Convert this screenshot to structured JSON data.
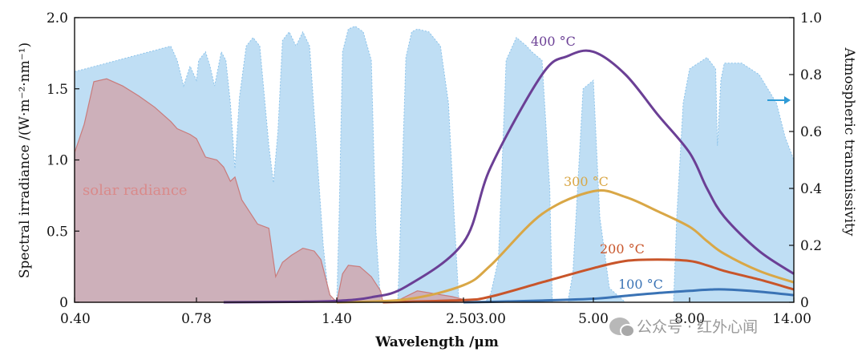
{
  "chart_data": {
    "type": "line",
    "x_axis": {
      "label": "Wavelength /μm",
      "ticks": [
        "0.40",
        "0.78",
        "1.40",
        "2.50",
        "3.00",
        "5.00",
        "8.00",
        "14.00"
      ],
      "tick_values": [
        0.4,
        0.78,
        1.4,
        2.5,
        3.0,
        5.0,
        8.0,
        14.0
      ],
      "scale": "piecewise",
      "range": [
        0.4,
        14.0
      ]
    },
    "y_axis_left": {
      "label": "Spectral irradiance /(W·m⁻²·nm⁻¹)",
      "ticks": [
        "0",
        "0.5",
        "1.0",
        "1.5",
        "2.0"
      ],
      "range": [
        0,
        2.0
      ]
    },
    "y_axis_right": {
      "label": "Atmospheric transmissivity",
      "ticks": [
        "0",
        "0.2",
        "0.4",
        "0.6",
        "0.8",
        "1.0"
      ],
      "range": [
        0,
        1.0
      ]
    },
    "series": [
      {
        "name": "100 °C",
        "color": "#3a73b5",
        "axis": "left",
        "x": [
          2.5,
          3.0,
          4.0,
          5.0,
          6.0,
          7.0,
          8.0,
          9.0,
          10.0,
          12.0,
          14.0
        ],
        "y": [
          0.0,
          0.003,
          0.012,
          0.025,
          0.045,
          0.065,
          0.08,
          0.088,
          0.09,
          0.075,
          0.05
        ]
      },
      {
        "name": "200 °C",
        "color": "#c8552a",
        "axis": "left",
        "x": [
          1.8,
          2.5,
          3.0,
          4.0,
          5.0,
          6.0,
          7.0,
          8.0,
          9.0,
          10.0,
          12.0,
          14.0
        ],
        "y": [
          0.0,
          0.015,
          0.04,
          0.14,
          0.24,
          0.29,
          0.3,
          0.29,
          0.26,
          0.22,
          0.16,
          0.09
        ]
      },
      {
        "name": "300 °C",
        "color": "#d9a746",
        "axis": "left",
        "x": [
          1.4,
          2.0,
          2.5,
          3.0,
          4.0,
          5.0,
          6.0,
          7.0,
          8.0,
          9.0,
          10.0,
          12.0,
          14.0
        ],
        "y": [
          0.0,
          0.02,
          0.12,
          0.26,
          0.62,
          0.78,
          0.74,
          0.64,
          0.53,
          0.43,
          0.34,
          0.22,
          0.14
        ]
      },
      {
        "name": "400 °C",
        "color": "#6b3f95",
        "axis": "left",
        "x": [
          0.9,
          1.2,
          1.4,
          1.7,
          2.0,
          2.5,
          3.0,
          4.0,
          4.5,
          5.0,
          6.0,
          7.0,
          8.0,
          9.0,
          10.0,
          12.0,
          14.0
        ],
        "y": [
          0.0,
          0.003,
          0.01,
          0.035,
          0.11,
          0.42,
          0.95,
          1.6,
          1.73,
          1.76,
          1.6,
          1.32,
          1.05,
          0.8,
          0.6,
          0.36,
          0.2
        ]
      },
      {
        "name": "solar radiance",
        "color": "#d98a8a",
        "axis": "left",
        "style": "filled",
        "x": [
          0.4,
          0.43,
          0.46,
          0.5,
          0.55,
          0.6,
          0.65,
          0.7,
          0.72,
          0.76,
          0.78,
          0.82,
          0.87,
          0.9,
          0.93,
          0.95,
          0.98,
          1.05,
          1.1,
          1.13,
          1.16,
          1.2,
          1.25,
          1.3,
          1.33,
          1.37,
          1.4,
          1.45,
          1.5,
          1.6,
          1.7,
          1.78,
          1.8,
          1.85,
          1.95,
          2.1,
          2.25,
          2.4,
          2.5,
          2.55
        ],
        "y": [
          1.05,
          1.25,
          1.55,
          1.57,
          1.52,
          1.45,
          1.37,
          1.27,
          1.22,
          1.18,
          1.15,
          1.02,
          1.0,
          0.95,
          0.85,
          0.88,
          0.72,
          0.55,
          0.52,
          0.18,
          0.28,
          0.33,
          0.38,
          0.36,
          0.3,
          0.05,
          0.0,
          0.2,
          0.26,
          0.25,
          0.18,
          0.08,
          0.0,
          0.0,
          0.02,
          0.08,
          0.06,
          0.04,
          0.02,
          0.0
        ]
      },
      {
        "name": "atmospheric transmissivity",
        "color": "#a9d3f0",
        "axis": "right",
        "style": "filled",
        "x": [
          0.4,
          0.5,
          0.6,
          0.7,
          0.72,
          0.74,
          0.76,
          0.78,
          0.79,
          0.82,
          0.84,
          0.86,
          0.89,
          0.91,
          0.93,
          0.95,
          0.97,
          1.0,
          1.03,
          1.06,
          1.1,
          1.12,
          1.14,
          1.16,
          1.19,
          1.22,
          1.25,
          1.28,
          1.31,
          1.34,
          1.36,
          1.38,
          1.4,
          1.42,
          1.45,
          1.5,
          1.56,
          1.63,
          1.7,
          1.74,
          1.78,
          1.82,
          1.87,
          1.93,
          1.96,
          2.0,
          2.05,
          2.1,
          2.2,
          2.3,
          2.37,
          2.42,
          2.46,
          2.5,
          2.6,
          2.7,
          2.8,
          2.9,
          3.0,
          3.15,
          3.3,
          3.5,
          3.7,
          3.8,
          4.0,
          4.15,
          4.2,
          4.3,
          4.4,
          4.5,
          4.6,
          4.8,
          5.0,
          5.2,
          5.5,
          6.0,
          7.0,
          7.5,
          7.6,
          7.8,
          8.0,
          8.5,
          9.0,
          9.5,
          9.6,
          9.8,
          10.0,
          11.0,
          12.0,
          13.0,
          13.5,
          14.0
        ],
        "y": [
          0.81,
          0.84,
          0.87,
          0.9,
          0.85,
          0.76,
          0.83,
          0.78,
          0.85,
          0.88,
          0.83,
          0.76,
          0.88,
          0.85,
          0.7,
          0.47,
          0.72,
          0.9,
          0.93,
          0.9,
          0.55,
          0.42,
          0.6,
          0.92,
          0.95,
          0.9,
          0.95,
          0.9,
          0.55,
          0.2,
          0.05,
          0.0,
          0.0,
          0.3,
          0.88,
          0.96,
          0.97,
          0.95,
          0.85,
          0.25,
          0.0,
          0.0,
          0.0,
          0.0,
          0.35,
          0.86,
          0.95,
          0.96,
          0.95,
          0.9,
          0.7,
          0.3,
          0.0,
          0.0,
          0.0,
          0.0,
          0.0,
          0.0,
          0.03,
          0.15,
          0.85,
          0.93,
          0.9,
          0.88,
          0.85,
          0.4,
          0.0,
          0.0,
          0.0,
          0.0,
          0.1,
          0.75,
          0.78,
          0.3,
          0.05,
          0.0,
          0.0,
          0.0,
          0.3,
          0.7,
          0.82,
          0.84,
          0.86,
          0.82,
          0.55,
          0.78,
          0.84,
          0.84,
          0.8,
          0.7,
          0.58,
          0.5
        ]
      }
    ],
    "annotations": [
      {
        "text": "solar radiance",
        "color": "#d98a8a"
      },
      {
        "text": "400 °C",
        "color": "#6b3f95"
      },
      {
        "text": "300 °C",
        "color": "#d9a746"
      },
      {
        "text": "200 °C",
        "color": "#c8552a"
      },
      {
        "text": "100 °C",
        "color": "#3a73b5"
      }
    ],
    "right_axis_marker": {
      "symbol": "arrow-right",
      "color": "#2f9bd6",
      "value": 0.71
    },
    "grid": false,
    "legend": "none"
  },
  "watermark": {
    "text": "公众号 · 红外心闻",
    "icon": "wechat-icon"
  }
}
